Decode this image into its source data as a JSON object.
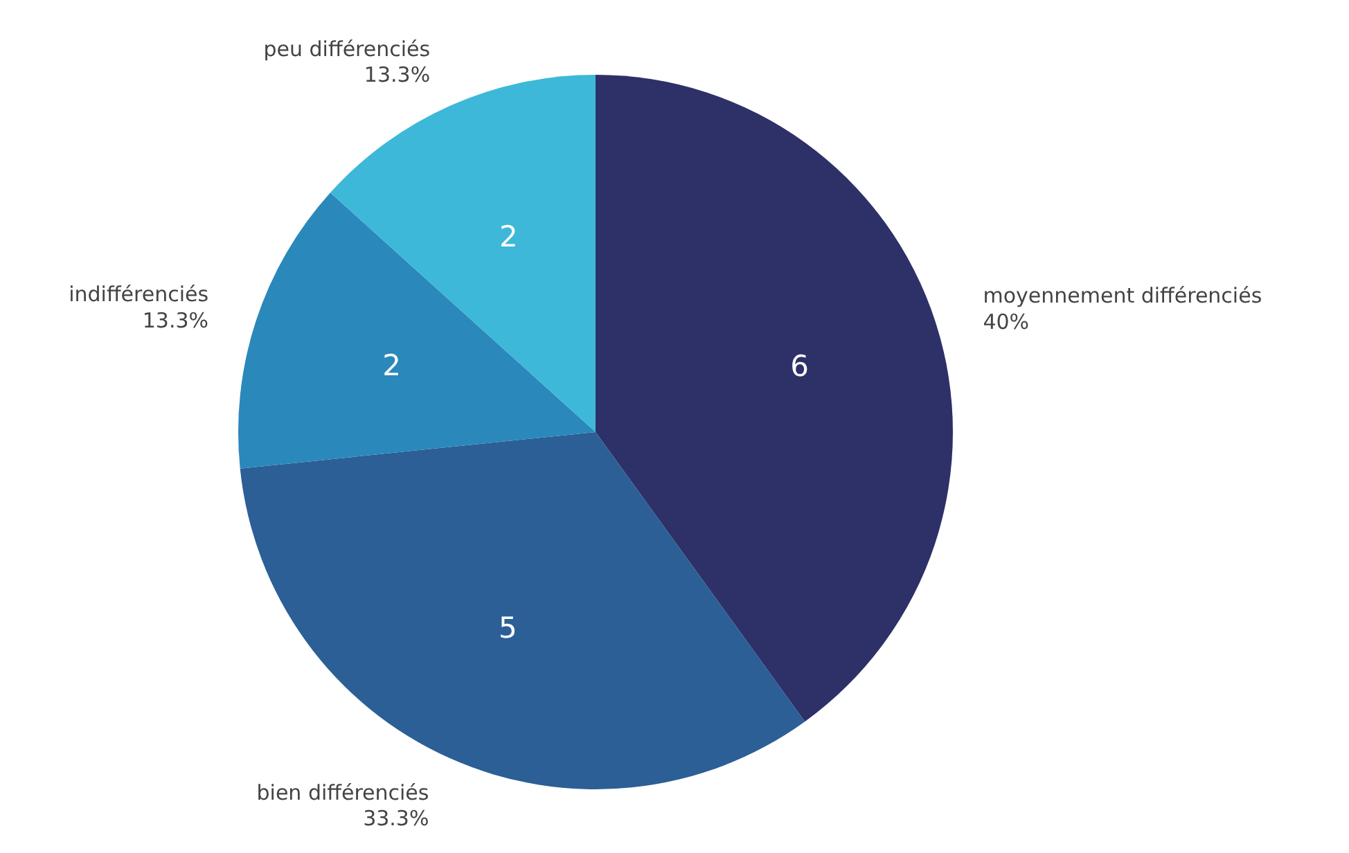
{
  "chart_data": {
    "type": "pie",
    "categories": [
      "moyennement différenciés",
      "bien différenciés",
      "indifférenciés",
      "peu différenciés"
    ],
    "values": [
      40,
      33.3,
      13.3,
      13.3
    ],
    "colors": [
      "#2e3068",
      "#2b5f96",
      "#2a88bb",
      "#3db8d8"
    ],
    "value_labels": [
      "40%",
      "33.3%",
      "13.3%",
      "13.3%"
    ],
    "annotations": [
      {
        "text": "6",
        "x": "moyennement différenciés"
      },
      {
        "text": "5",
        "x": "bien différenciés"
      },
      {
        "text": "2",
        "x": "indifférenciés"
      },
      {
        "text": "2",
        "x": "peu différenciés"
      }
    ]
  }
}
